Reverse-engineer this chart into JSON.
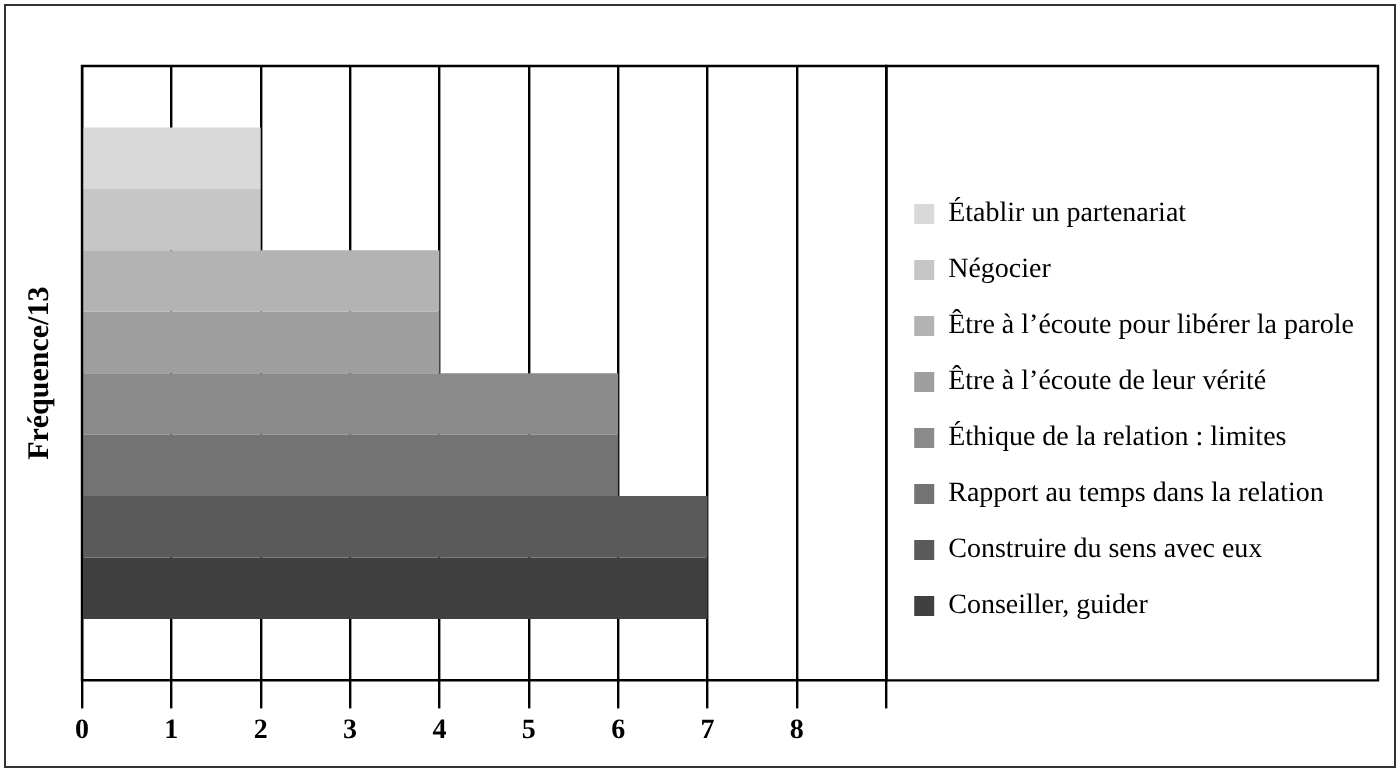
{
  "chart_data": {
    "type": "bar",
    "orientation": "horizontal",
    "ylabel": "Fréquence/13",
    "categories": [
      null
    ],
    "series": [
      {
        "name": "Établir un partenariat",
        "color": "#d9d9d9",
        "values": [
          2
        ]
      },
      {
        "name": "Négocier",
        "color": "#c6c6c6",
        "values": [
          2
        ]
      },
      {
        "name": "Être à l’écoute pour libérer la parole",
        "color": "#b3b3b3",
        "values": [
          4
        ]
      },
      {
        "name": "Être à l’écoute de leur vérité",
        "color": "#9e9e9e",
        "values": [
          4
        ]
      },
      {
        "name": "Éthique de la relation : limites",
        "color": "#8a8a8a",
        "values": [
          6
        ]
      },
      {
        "name": "Rapport au temps dans la relation",
        "color": "#737373",
        "values": [
          6
        ]
      },
      {
        "name": "Construire du sens avec eux",
        "color": "#5a5a5a",
        "values": [
          7
        ]
      },
      {
        "name": "Conseiller, guider",
        "color": "#404040",
        "values": [
          7
        ]
      }
    ],
    "xlim": [
      0,
      9
    ],
    "xticks": [
      0,
      1,
      2,
      3,
      4,
      5,
      6,
      7,
      8,
      {
        "value": 9,
        "label": null
      }
    ],
    "grid": "x",
    "legend": "right",
    "tick_labels": "x"
  }
}
